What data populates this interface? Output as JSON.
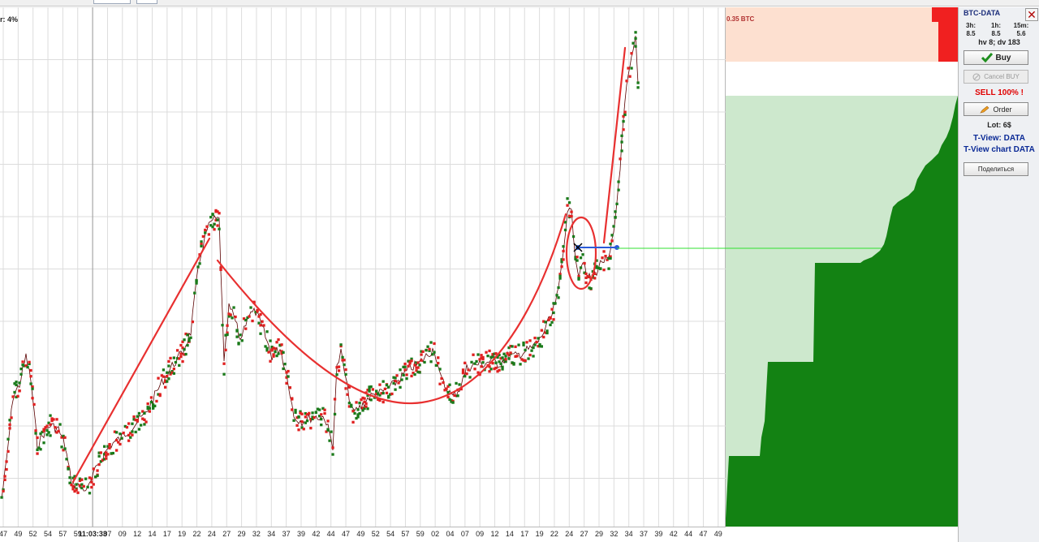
{
  "chart": {
    "filter_label": "r: 4%",
    "time_labels": [
      "47",
      "49",
      "52",
      "54",
      "57",
      "59",
      "11:03:33",
      "07",
      "09",
      "12",
      "14",
      "17",
      "19",
      "22",
      "24",
      "27",
      "29",
      "32",
      "34",
      "37",
      "39",
      "42",
      "44",
      "47",
      "49",
      "52",
      "54",
      "57",
      "59",
      "02",
      "04",
      "07",
      "09",
      "12",
      "14",
      "17",
      "19",
      "22",
      "24",
      "27",
      "29",
      "32",
      "34",
      "37",
      "39",
      "42",
      "44",
      "47",
      "49"
    ],
    "time_label_strong": "11:03:33",
    "colors": {
      "buy_dot": "#1a7a1a",
      "sell_dot": "#e02020",
      "price_line": "#5a0000",
      "trend": "#e83030",
      "grid": "#dcdcdc"
    }
  },
  "orderbook": {
    "ask_label": "0.35 BTC",
    "colors": {
      "bid_fill": "#138213",
      "bid_fill_light": "#cde8cd",
      "ask_zone": "#fde0d0",
      "ask_bar": "#f02020",
      "level_line": "#30e030"
    }
  },
  "panel": {
    "title": "BTC-DATA",
    "volumes": [
      {
        "label": "3h:",
        "value": "8.5"
      },
      {
        "label": "1h:",
        "value": "8.5"
      },
      {
        "label": "15m:",
        "value": "5.6"
      }
    ],
    "hv_line": "hv 8; dv 183",
    "buy_label": "Buy",
    "cancel_label": "Cancel BUY",
    "sell_label": "SELL 100% !",
    "order_label": "Order",
    "lot_label": "Lot: 6$",
    "tview_label": "T-View: DATA",
    "tview_chart_label": "T-View chart DATA",
    "share_label": "Поделиться",
    "icons": {
      "close": "close-icon",
      "buy": "checkmark-icon",
      "cancel": "cancel-icon",
      "order": "pencil-icon"
    }
  }
}
